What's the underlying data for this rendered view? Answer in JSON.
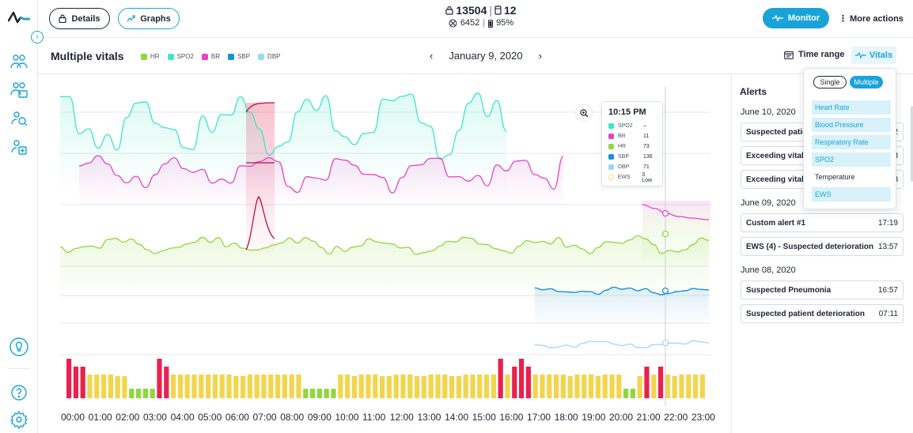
{
  "header": {
    "details_label": "Details",
    "graphs_label": "Graphs",
    "count_primary": "13504",
    "count_secondary": "12",
    "count_tertiary": "6452",
    "battery_percent": "95%",
    "monitor_label": "Monitor",
    "more_actions_label": "More actions"
  },
  "subheader": {
    "title": "Multiple vitals",
    "date": "January 9, 2020",
    "time_range_label": "Time range",
    "vitals_label": "Vitals"
  },
  "legend": [
    {
      "name": "HR",
      "color": "#8fd83c"
    },
    {
      "name": "SPO2",
      "color": "#3ee6c3"
    },
    {
      "name": "BR",
      "color": "#e642c8"
    },
    {
      "name": "SBP",
      "color": "#1a90d9"
    },
    {
      "name": "DBP",
      "color": "#9dd8f2"
    }
  ],
  "tooltip": {
    "time": "10:15 PM",
    "rows": [
      {
        "name": "SPO2",
        "value": "–",
        "color": "#3ee6c3"
      },
      {
        "name": "BR",
        "value": "11",
        "color": "#e642c8"
      },
      {
        "name": "HR",
        "value": "73",
        "color": "#8fd83c"
      },
      {
        "name": "SBP",
        "value": "136",
        "color": "#1a90d9"
      },
      {
        "name": "DBP",
        "value": "71",
        "color": "#9dd8f2"
      },
      {
        "name": "EWS",
        "value": "3 Low",
        "color": "#f5e26a"
      }
    ]
  },
  "x_labels": [
    "00:00",
    "01:00",
    "02:00",
    "03:00",
    "04:00",
    "05:00",
    "06:00",
    "07:00",
    "08:00",
    "09:00",
    "10:00",
    "11:00",
    "12:00",
    "13:00",
    "14:00",
    "15:00",
    "16:00",
    "17:00",
    "18:00",
    "19:00",
    "20:00",
    "21:00",
    "22:00",
    "23:00"
  ],
  "chart_data": {
    "type": "line",
    "x": [
      "00:00",
      "01:00",
      "02:00",
      "03:00",
      "04:00",
      "05:00",
      "06:00",
      "07:00",
      "08:00",
      "09:00",
      "10:00",
      "11:00",
      "12:00",
      "13:00",
      "14:00",
      "15:00",
      "16:00",
      "17:00",
      "18:00",
      "19:00",
      "20:00",
      "21:00",
      "22:00",
      "23:00"
    ],
    "series": [
      {
        "name": "SPO2",
        "color": "#3ee6c3"
      },
      {
        "name": "BR",
        "color": "#e642c8"
      },
      {
        "name": "HR",
        "color": "#8fd83c"
      },
      {
        "name": "SBP",
        "color": "#1a90d9"
      },
      {
        "name": "DBP",
        "color": "#9dd8f2"
      }
    ],
    "ews_bars": {
      "colors": {
        "high": "#e8224f",
        "medium": "#f3d54d",
        "low": "#8fd83c"
      },
      "levels": [
        5,
        4,
        4,
        3,
        3,
        3,
        3,
        2,
        2,
        1,
        1,
        1,
        1,
        5,
        4,
        3,
        3,
        3,
        3,
        3,
        3,
        3,
        3,
        3,
        2,
        2,
        3,
        3,
        3,
        3,
        3,
        3,
        3,
        3,
        1,
        1,
        1,
        1,
        1,
        3,
        3,
        2,
        3,
        3,
        3,
        2,
        2,
        3,
        3,
        3,
        2,
        2,
        3,
        3,
        3,
        2,
        2,
        3,
        3,
        3,
        3,
        3,
        5,
        3,
        4,
        5,
        4,
        3,
        3,
        3,
        3,
        3,
        2,
        3,
        3,
        3,
        2,
        3,
        3,
        3,
        1,
        1,
        2,
        4,
        3,
        4,
        3,
        2,
        3,
        3,
        3,
        3
      ]
    }
  },
  "alerts": {
    "title": "Alerts",
    "groups": [
      {
        "date": "June 10, 2020",
        "items": [
          {
            "label": "Suspected patie",
            "time": "2"
          },
          {
            "label": "Exceeding vitals",
            "time": "3"
          },
          {
            "label": "Exceeding vitals",
            "time": "3"
          }
        ]
      },
      {
        "date": "June 09, 2020",
        "items": [
          {
            "label": "Custom alert #1",
            "time": "17:19"
          },
          {
            "label": "EWS (4) - Suspected deterioration",
            "time": "13:57"
          }
        ]
      },
      {
        "date": "June 08, 2020",
        "items": [
          {
            "label": "Suspected Pneumonia",
            "time": "16:57"
          },
          {
            "label": "Suspected patient deterioration",
            "time": "07:11"
          }
        ]
      }
    ]
  },
  "vitals_dropdown": {
    "single_label": "Single",
    "multiple_label": "Multiple",
    "items": [
      {
        "label": "Heart Rate",
        "selected": true
      },
      {
        "label": "Blood Pressure",
        "selected": true
      },
      {
        "label": "Respiratory Rate",
        "selected": true
      },
      {
        "label": "SPO2",
        "selected": true
      },
      {
        "label": "Temperature",
        "selected": false
      },
      {
        "label": "EWS",
        "selected": true
      }
    ]
  }
}
